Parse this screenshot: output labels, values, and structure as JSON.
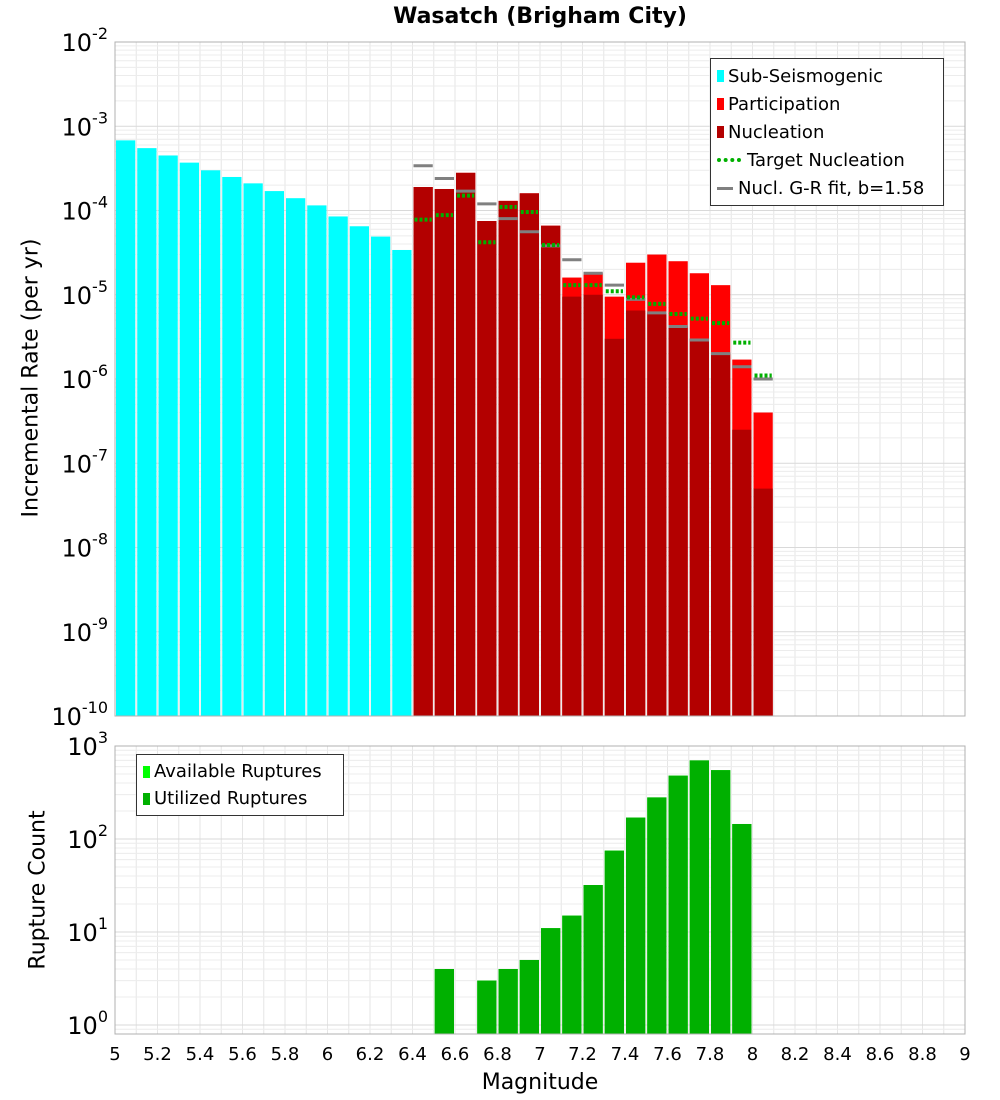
{
  "chart_data": [
    {
      "type": "bar",
      "title": "Wasatch (Brigham City)",
      "xlabel": "",
      "ylabel": "Incremental Rate (per yr)",
      "xlim": [
        5,
        9
      ],
      "ylim": [
        1e-10,
        0.01
      ],
      "yscale": "log",
      "grid": true,
      "bin_width": 0.1,
      "x": [
        5.05,
        5.15,
        5.25,
        5.35,
        5.45,
        5.55,
        5.65,
        5.75,
        5.85,
        5.95,
        6.05,
        6.15,
        6.25,
        6.35,
        6.45,
        6.55,
        6.65,
        6.75,
        6.85,
        6.95,
        7.05,
        7.15,
        7.25,
        7.35,
        7.45,
        7.55,
        7.65,
        7.75,
        7.85,
        7.95,
        8.05
      ],
      "y_tick_labels": [
        {
          "base": "10",
          "exp": "-10",
          "value": 1e-10
        },
        {
          "base": "10",
          "exp": "-9",
          "value": 1e-09
        },
        {
          "base": "10",
          "exp": "-8",
          "value": 1e-08
        },
        {
          "base": "10",
          "exp": "-7",
          "value": 1e-07
        },
        {
          "base": "10",
          "exp": "-6",
          "value": 1e-06
        },
        {
          "base": "10",
          "exp": "-5",
          "value": 1e-05
        },
        {
          "base": "10",
          "exp": "-4",
          "value": 0.0001
        },
        {
          "base": "10",
          "exp": "-3",
          "value": 0.001
        },
        {
          "base": "10",
          "exp": "-2",
          "value": 0.01
        }
      ],
      "legend": {
        "position": "top-right",
        "entries": [
          {
            "label": "Sub-Seismogenic",
            "style": "box",
            "color": "#00ffff"
          },
          {
            "label": "Participation",
            "style": "box",
            "color": "#ff0000"
          },
          {
            "label": "Nucleation",
            "style": "box",
            "color": "#b30000"
          },
          {
            "label": "Target Nucleation",
            "style": "dotted",
            "color": "#00b000"
          },
          {
            "label": "Nucl. G-R fit, b=1.58",
            "style": "line",
            "color": "#808080"
          }
        ]
      },
      "series": [
        {
          "name": "Sub-Seismogenic",
          "color": "#00ffff",
          "values": [
            0.00068,
            0.00055,
            0.00045,
            0.00037,
            0.0003,
            0.00025,
            0.00021,
            0.00017,
            0.00014,
            0.000115,
            8.5e-05,
            6.5e-05,
            4.9e-05,
            3.4e-05,
            null,
            null,
            null,
            null,
            null,
            null,
            null,
            null,
            null,
            null,
            null,
            null,
            null,
            null,
            null,
            null,
            null
          ]
        },
        {
          "name": "Participation",
          "color": "#ff0000",
          "values": [
            null,
            null,
            null,
            null,
            null,
            null,
            null,
            null,
            null,
            null,
            null,
            null,
            null,
            null,
            0.00019,
            0.00018,
            0.00028,
            7.5e-05,
            0.00013,
            0.00016,
            6.6e-05,
            1.6e-05,
            1.8e-05,
            9.5e-06,
            2.4e-05,
            3e-05,
            2.5e-05,
            1.8e-05,
            1.3e-05,
            1.7e-06,
            4e-07
          ]
        },
        {
          "name": "Nucleation",
          "color": "#b30000",
          "values": [
            null,
            null,
            null,
            null,
            null,
            null,
            null,
            null,
            null,
            null,
            null,
            null,
            null,
            null,
            0.00019,
            0.00018,
            0.00028,
            7.5e-05,
            0.00013,
            0.00016,
            6.6e-05,
            9.5e-06,
            1e-05,
            3e-06,
            6.5e-06,
            6.2e-06,
            4.2e-06,
            3e-06,
            2e-06,
            2.5e-07,
            5e-08
          ]
        },
        {
          "name": "Target Nucleation",
          "color": "#00b000",
          "style": "dotted",
          "values": [
            null,
            null,
            null,
            null,
            null,
            null,
            null,
            null,
            null,
            null,
            null,
            null,
            null,
            null,
            7.8e-05,
            8.8e-05,
            0.00015,
            4.2e-05,
            0.00011,
            9.6e-05,
            3.9e-05,
            1.3e-05,
            1.3e-05,
            1.1e-05,
            9.3e-06,
            7.8e-06,
            5.9e-06,
            5.2e-06,
            4.6e-06,
            2.7e-06,
            1.1e-06
          ]
        },
        {
          "name": "Nucl. G-R fit, b=1.58",
          "color": "#808080",
          "style": "line",
          "values": [
            null,
            null,
            null,
            null,
            null,
            null,
            null,
            null,
            null,
            null,
            null,
            null,
            null,
            null,
            0.00034,
            0.00024,
            0.00017,
            0.00012,
            8e-05,
            5.6e-05,
            3.8e-05,
            2.6e-05,
            1.8e-05,
            1.3e-05,
            8.8e-06,
            6.1e-06,
            4.2e-06,
            2.9e-06,
            2e-06,
            1.4e-06,
            1e-06
          ]
        }
      ]
    },
    {
      "type": "bar",
      "title": "",
      "xlabel": "Magnitude",
      "ylabel": "Rupture Count",
      "xlim": [
        5,
        9
      ],
      "ylim": [
        0.8,
        1000
      ],
      "yscale": "log",
      "grid": true,
      "bin_width": 0.1,
      "x": [
        6.55,
        6.65,
        6.75,
        6.85,
        6.95,
        7.05,
        7.15,
        7.25,
        7.35,
        7.45,
        7.55,
        7.65,
        7.75,
        7.85,
        7.95
      ],
      "x_tick_labels": [
        "5",
        "5.2",
        "5.4",
        "5.6",
        "5.8",
        "6",
        "6.2",
        "6.4",
        "6.6",
        "6.8",
        "7",
        "7.2",
        "7.4",
        "7.6",
        "7.8",
        "8",
        "8.2",
        "8.4",
        "8.6",
        "8.8",
        "9"
      ],
      "y_tick_labels": [
        {
          "base": "10",
          "exp": "0",
          "value": 1
        },
        {
          "base": "10",
          "exp": "1",
          "value": 10
        },
        {
          "base": "10",
          "exp": "2",
          "value": 100
        },
        {
          "base": "10",
          "exp": "3",
          "value": 1000
        }
      ],
      "legend": {
        "position": "top-left",
        "entries": [
          {
            "label": "Available Ruptures",
            "style": "box",
            "color": "#00ff00"
          },
          {
            "label": "Utilized Ruptures",
            "style": "box",
            "color": "#00b000"
          }
        ]
      },
      "series": [
        {
          "name": "Available Ruptures",
          "color": "#00ff00",
          "values": [
            4,
            null,
            3,
            4,
            5,
            11,
            15,
            32,
            75,
            170,
            280,
            480,
            700,
            550,
            145
          ]
        },
        {
          "name": "Utilized Ruptures",
          "color": "#00b000",
          "values": [
            4,
            null,
            3,
            4,
            5,
            11,
            15,
            32,
            75,
            170,
            280,
            480,
            700,
            550,
            145
          ]
        }
      ]
    }
  ]
}
